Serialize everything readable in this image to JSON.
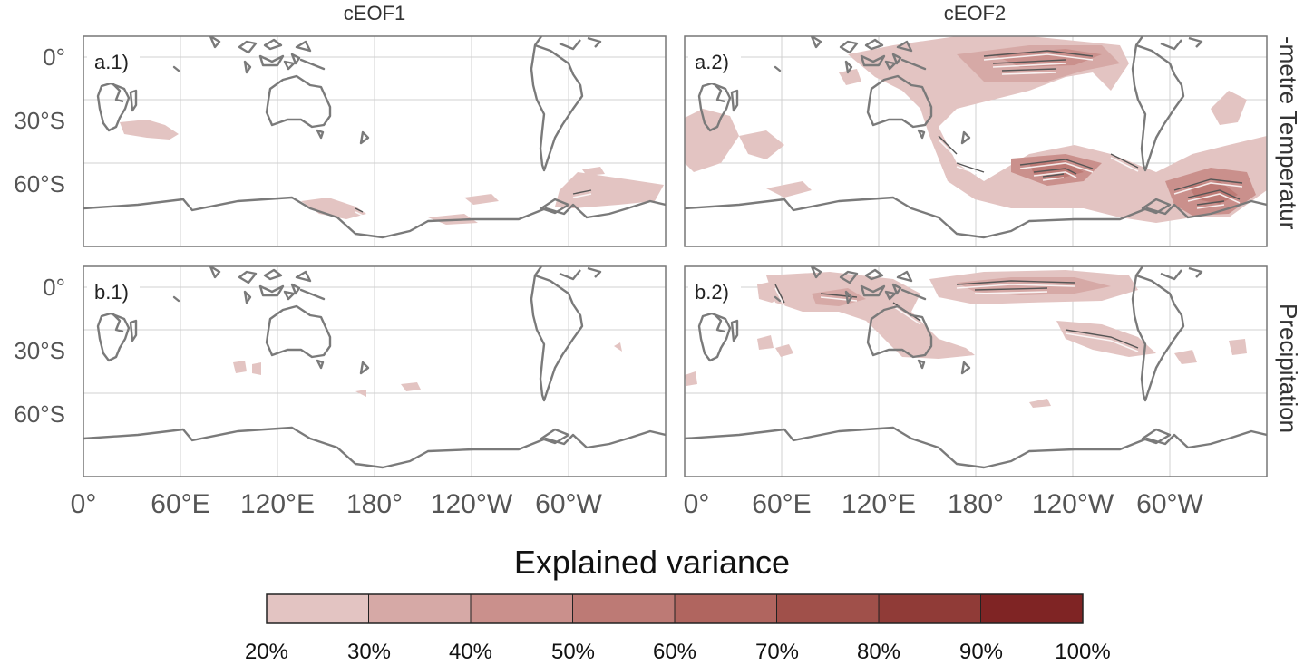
{
  "columns": [
    "cEOF1",
    "cEOF2"
  ],
  "rows": [
    "-metre Temperatur",
    "Precipitation"
  ],
  "panels": [
    {
      "label": "a.1)",
      "row": 0,
      "col": 0
    },
    {
      "label": "a.2)",
      "row": 0,
      "col": 1
    },
    {
      "label": "b.1)",
      "row": 1,
      "col": 0
    },
    {
      "label": "b.2)",
      "row": 1,
      "col": 1
    }
  ],
  "lat_ticks": [
    "0°",
    "30°S",
    "60°S"
  ],
  "lon_ticks": [
    "0°",
    "60°E",
    "120°E",
    "180°",
    "120°W",
    "60°W"
  ],
  "colorbar": {
    "title": "Explained variance",
    "ticks": [
      "20%",
      "30%",
      "40%",
      "50%",
      "60%",
      "70%",
      "80%",
      "90%",
      "100%"
    ],
    "colors": [
      "#e3c4c2",
      "#d6a9a6",
      "#ca908c",
      "#bd7a75",
      "#b0655f",
      "#a0504a",
      "#903b37",
      "#7f2424"
    ]
  },
  "map_colors": {
    "coast": "#7a7a7a",
    "grid": "#cccccc",
    "frame": "#777777"
  }
}
